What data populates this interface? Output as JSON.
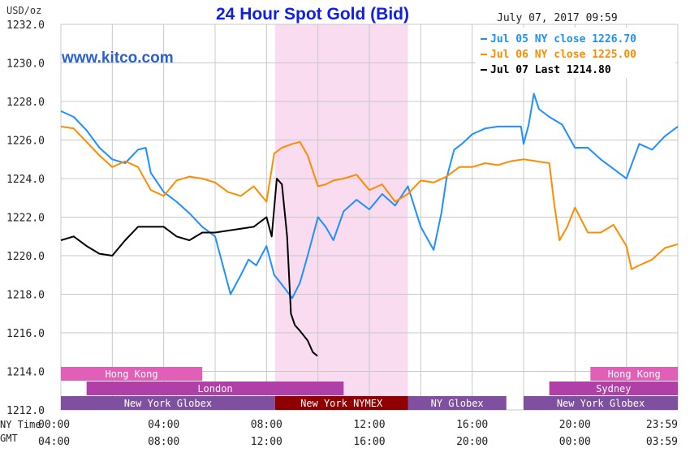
{
  "chart_data": {
    "type": "line",
    "title": "24 Hour Spot Gold (Bid)",
    "timestamp": "July 07, 2017 09:59",
    "watermark": "www.kitco.com",
    "y_unit_label": "USD/oz",
    "ylim": [
      1212.0,
      1232.0
    ],
    "y_ticks": [
      "1212.0",
      "1214.0",
      "1216.0",
      "1218.0",
      "1220.0",
      "1222.0",
      "1224.0",
      "1226.0",
      "1228.0",
      "1230.0",
      "1232.0"
    ],
    "x_row_labels": [
      "NY Time",
      "GMT"
    ],
    "x_ticks_ny": [
      "00:00",
      "04:00",
      "08:00",
      "12:00",
      "16:00",
      "20:00",
      "23:59"
    ],
    "x_ticks_gmt": [
      "04:00",
      "08:00",
      "12:00",
      "16:00",
      "20:00",
      "00:00",
      "03:59"
    ],
    "x_tick_hours": [
      0,
      4,
      8,
      12,
      16,
      20,
      23.983
    ],
    "xlim": [
      0,
      24
    ],
    "grid": true,
    "legend_position": "top-right",
    "nymex_session": [
      8.33,
      13.5
    ],
    "series": [
      {
        "name": "Jul 05 NY close 1226.70",
        "color": "#1e90ff",
        "x": [
          0,
          0.5,
          1,
          1.5,
          2,
          2.5,
          3,
          3.3,
          3.5,
          4,
          4.5,
          5,
          5.5,
          6,
          6.3,
          6.6,
          7,
          7.3,
          7.6,
          8,
          8.3,
          8.6,
          9,
          9.3,
          9.6,
          10,
          10.3,
          10.6,
          11,
          11.5,
          12,
          12.5,
          13,
          13.5,
          14,
          14.5,
          14.8,
          15,
          15.3,
          15.6,
          16,
          16.5,
          17,
          17.5,
          17.9,
          18,
          18.2,
          18.4,
          18.6,
          19,
          19.5,
          20,
          20.5,
          21,
          21.5,
          22,
          22.5,
          23,
          23.5,
          24
        ],
        "y": [
          1227.5,
          1227.2,
          1226.5,
          1225.6,
          1225.0,
          1224.8,
          1225.5,
          1225.6,
          1224.3,
          1223.3,
          1222.8,
          1222.2,
          1221.5,
          1221.0,
          1219.5,
          1218.0,
          1219.0,
          1219.8,
          1219.5,
          1220.5,
          1219.0,
          1218.5,
          1217.8,
          1218.6,
          1220.0,
          1222.0,
          1221.5,
          1220.8,
          1222.3,
          1222.9,
          1222.4,
          1223.2,
          1222.6,
          1223.6,
          1221.5,
          1220.3,
          1222.2,
          1224.0,
          1225.5,
          1225.8,
          1226.3,
          1226.6,
          1226.7,
          1226.7,
          1226.7,
          1225.8,
          1226.8,
          1228.4,
          1227.6,
          1227.2,
          1226.8,
          1225.6,
          1225.6,
          1225.0,
          1224.5,
          1224.0,
          1225.8,
          1225.5,
          1226.2,
          1226.7
        ]
      },
      {
        "name": "Jul 06 NY close 1225.00",
        "color": "#ff8c00",
        "x": [
          0,
          0.5,
          1,
          1.5,
          2,
          2.5,
          3,
          3.5,
          4,
          4.5,
          5,
          5.5,
          6,
          6.5,
          7,
          7.5,
          8,
          8.3,
          8.6,
          9,
          9.3,
          9.6,
          10,
          10.3,
          10.6,
          11,
          11.5,
          12,
          12.5,
          13,
          13.5,
          14,
          14.5,
          15,
          15.5,
          16,
          16.5,
          17,
          17.5,
          18,
          18.5,
          19,
          19.2,
          19.4,
          19.7,
          20,
          20.5,
          21,
          21.5,
          22,
          22.2,
          22.5,
          23,
          23.5,
          24
        ],
        "y": [
          1226.7,
          1226.6,
          1225.9,
          1225.2,
          1224.6,
          1224.9,
          1224.6,
          1223.4,
          1223.1,
          1223.9,
          1224.1,
          1224.0,
          1223.8,
          1223.3,
          1223.1,
          1223.6,
          1222.8,
          1225.3,
          1225.6,
          1225.8,
          1225.9,
          1225.2,
          1223.6,
          1223.7,
          1223.9,
          1224.0,
          1224.2,
          1223.4,
          1223.7,
          1222.8,
          1223.2,
          1223.9,
          1223.8,
          1224.1,
          1224.6,
          1224.6,
          1224.8,
          1224.7,
          1224.9,
          1225.0,
          1224.9,
          1224.8,
          1222.6,
          1220.8,
          1221.5,
          1222.5,
          1221.2,
          1221.2,
          1221.6,
          1220.5,
          1219.3,
          1219.5,
          1219.8,
          1220.4,
          1220.6
        ]
      },
      {
        "name": "Jul 07 Last 1214.80",
        "color": "#000000",
        "x": [
          0,
          0.5,
          1,
          1.5,
          2,
          2.5,
          3,
          3.5,
          4,
          4.5,
          5,
          5.5,
          6,
          6.5,
          7,
          7.5,
          8,
          8.2,
          8.4,
          8.6,
          8.8,
          8.95,
          9.1,
          9.3,
          9.6,
          9.8,
          9.98
        ],
        "y": [
          1220.8,
          1221.0,
          1220.5,
          1220.1,
          1220.0,
          1220.8,
          1221.5,
          1221.5,
          1221.5,
          1221.0,
          1220.8,
          1221.2,
          1221.2,
          1221.3,
          1221.4,
          1221.5,
          1222.0,
          1221.0,
          1224.0,
          1223.7,
          1221.0,
          1217.0,
          1216.4,
          1216.1,
          1215.6,
          1215.0,
          1214.8
        ]
      }
    ],
    "sessions": [
      {
        "label": "Hong Kong",
        "row": 0,
        "start": 0,
        "end": 5.5,
        "color": "#e060b8",
        "text_color": "#ffffff"
      },
      {
        "label": "Hong Kong",
        "row": 0,
        "start": 20.6,
        "end": 24,
        "color": "#e060b8",
        "text_color": "#ffffff"
      },
      {
        "label": "London",
        "row": 1,
        "start": 1.0,
        "end": 11.0,
        "color": "#b040a8",
        "text_color": "#ffffff"
      },
      {
        "label": "Sydney",
        "row": 1,
        "start": 19.0,
        "end": 24,
        "color": "#b040a8",
        "text_color": "#ffffff"
      },
      {
        "label": "New York Globex",
        "row": 2,
        "start": 0,
        "end": 8.33,
        "color": "#8050a0",
        "text_color": "#ffffff"
      },
      {
        "label": "New York NYMEX",
        "row": 2,
        "start": 8.33,
        "end": 13.5,
        "color": "#900000",
        "text_color": "#ffffff"
      },
      {
        "label": "NY Globex",
        "row": 2,
        "start": 13.5,
        "end": 17.33,
        "color": "#8050a0",
        "text_color": "#ffffff"
      },
      {
        "label": "New York Globex",
        "row": 2,
        "start": 18.0,
        "end": 24,
        "color": "#8050a0",
        "text_color": "#ffffff"
      }
    ]
  }
}
